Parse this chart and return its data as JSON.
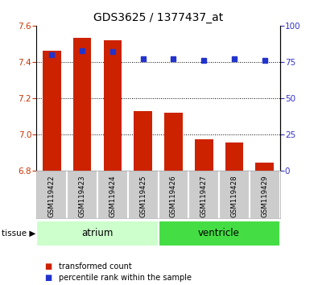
{
  "title": "GDS3625 / 1377437_at",
  "samples": [
    "GSM119422",
    "GSM119423",
    "GSM119424",
    "GSM119425",
    "GSM119426",
    "GSM119427",
    "GSM119428",
    "GSM119429"
  ],
  "transformed_count": [
    7.46,
    7.535,
    7.52,
    7.13,
    7.12,
    6.975,
    6.955,
    6.845
  ],
  "percentile_rank": [
    80,
    83,
    82,
    77,
    77,
    76,
    77,
    76
  ],
  "ylim_left": [
    6.8,
    7.6
  ],
  "ylim_right": [
    0,
    100
  ],
  "yticks_left": [
    6.8,
    7.0,
    7.2,
    7.4,
    7.6
  ],
  "yticks_right": [
    0,
    25,
    50,
    75,
    100
  ],
  "bar_color": "#cc2200",
  "dot_color": "#2233cc",
  "tissue_groups": [
    {
      "label": "atrium",
      "start": 0,
      "end": 3,
      "color": "#ccffcc"
    },
    {
      "label": "ventricle",
      "start": 4,
      "end": 7,
      "color": "#44dd44"
    }
  ],
  "xlabel_area_color": "#cccccc",
  "legend_items": [
    {
      "label": "transformed count",
      "color": "#cc2200"
    },
    {
      "label": "percentile rank within the sample",
      "color": "#2233cc"
    }
  ],
  "bar_width": 0.6
}
